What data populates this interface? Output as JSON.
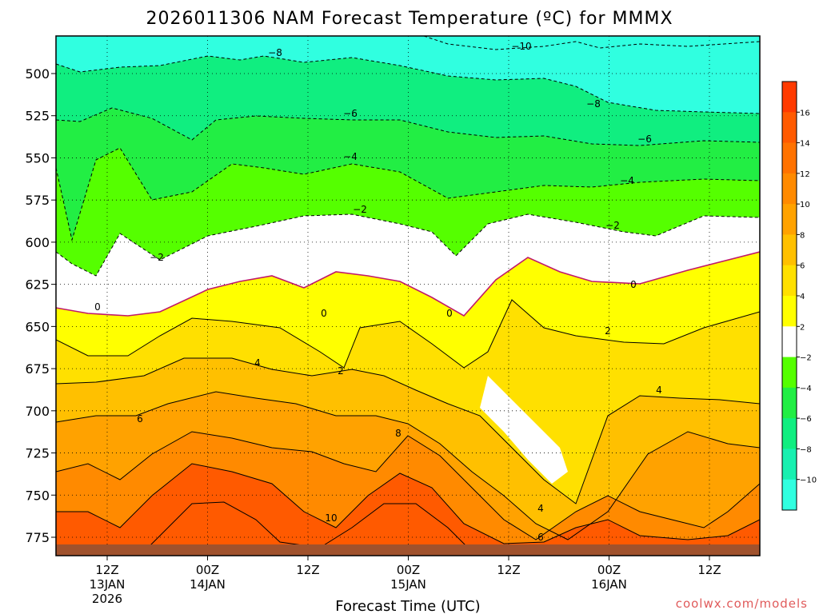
{
  "chart_data": {
    "type": "contour",
    "title": "2026011306 NAM Forecast Temperature (ºC) for MMMX",
    "xlabel": "Forecast Time (UTC)",
    "ylabel": "",
    "y_ticks": [
      "500",
      "525",
      "550",
      "575",
      "600",
      "625",
      "650",
      "675",
      "700",
      "725",
      "750",
      "775"
    ],
    "x_ticks": [
      {
        "line1": "12Z",
        "line2": "13JAN",
        "line3": "2026"
      },
      {
        "line1": "00Z",
        "line2": "14JAN",
        "line3": ""
      },
      {
        "line1": "12Z",
        "line2": "",
        "line3": ""
      },
      {
        "line1": "00Z",
        "line2": "15JAN",
        "line3": ""
      },
      {
        "line1": "12Z",
        "line2": "",
        "line3": ""
      },
      {
        "line1": "00Z",
        "line2": "16JAN",
        "line3": ""
      },
      {
        "line1": "12Z",
        "line2": "",
        "line3": ""
      }
    ],
    "colorbar": {
      "ticks": [
        "16",
        "14",
        "12",
        "10",
        "8",
        "6",
        "4",
        "2",
        "−2",
        "−4",
        "−6",
        "−8",
        "−10"
      ],
      "bands": [
        {
          "color": "#ff3a00"
        },
        {
          "color": "#ff5a00"
        },
        {
          "color": "#ff7200"
        },
        {
          "color": "#ff8a00"
        },
        {
          "color": "#ffa200"
        },
        {
          "color": "#ffc000"
        },
        {
          "color": "#ffe000"
        },
        {
          "color": "#ffff00"
        },
        {
          "color": "#ffffff"
        },
        {
          "color": "#55ff00"
        },
        {
          "color": "#22ee44"
        },
        {
          "color": "#10ee80"
        },
        {
          "color": "#18f0b0"
        },
        {
          "color": "#30ffe0"
        }
      ]
    },
    "contour_labels": [
      {
        "text": "−10",
        "color": "#000000"
      },
      {
        "text": "−8",
        "color": "#000000"
      },
      {
        "text": "−8",
        "color": "#000000"
      },
      {
        "text": "−6",
        "color": "#000000"
      },
      {
        "text": "−6",
        "color": "#000000"
      },
      {
        "text": "−4",
        "color": "#000000"
      },
      {
        "text": "−4",
        "color": "#000000"
      },
      {
        "text": "−2",
        "color": "#000000"
      },
      {
        "text": "−2",
        "color": "#000000"
      },
      {
        "text": "−2",
        "color": "#000000"
      },
      {
        "text": "0",
        "color": "#000000"
      },
      {
        "text": "0",
        "color": "#000000"
      },
      {
        "text": "0",
        "color": "#000000"
      },
      {
        "text": "0",
        "color": "#000000"
      },
      {
        "text": "2",
        "color": "#000000"
      },
      {
        "text": "2",
        "color": "#000000"
      },
      {
        "text": "4",
        "color": "#000000"
      },
      {
        "text": "4",
        "color": "#000000"
      },
      {
        "text": "4",
        "color": "#000000"
      },
      {
        "text": "6",
        "color": "#000000"
      },
      {
        "text": "6",
        "color": "#000000"
      },
      {
        "text": "8",
        "color": "#000000"
      },
      {
        "text": "10",
        "color": "#000000"
      }
    ],
    "contour_levels": [
      {
        "value": -10,
        "fill": "#30ffe0",
        "line": "dashed"
      },
      {
        "value": -8,
        "fill": "#18f0b0",
        "line": "dashed"
      },
      {
        "value": -6,
        "fill": "#10ee80",
        "line": "dashed"
      },
      {
        "value": -4,
        "fill": "#22ee44",
        "line": "dashed"
      },
      {
        "value": -2,
        "fill": "#55ff00",
        "line": "dashed"
      },
      {
        "value": 0,
        "fill": "#ffffff",
        "line": "magenta"
      },
      {
        "value": 2,
        "fill": "#ffff00",
        "line": "solid"
      },
      {
        "value": 4,
        "fill": "#ffe000",
        "line": "solid"
      },
      {
        "value": 6,
        "fill": "#ffc000",
        "line": "solid"
      },
      {
        "value": 8,
        "fill": "#ffa200",
        "line": "solid"
      },
      {
        "value": 10,
        "fill": "#ff8a00",
        "line": "solid"
      },
      {
        "value": 12,
        "fill": "#ff5a00",
        "line": "solid"
      }
    ],
    "terrain_color": "#a0522d",
    "credit": "coolwx.com/models"
  }
}
